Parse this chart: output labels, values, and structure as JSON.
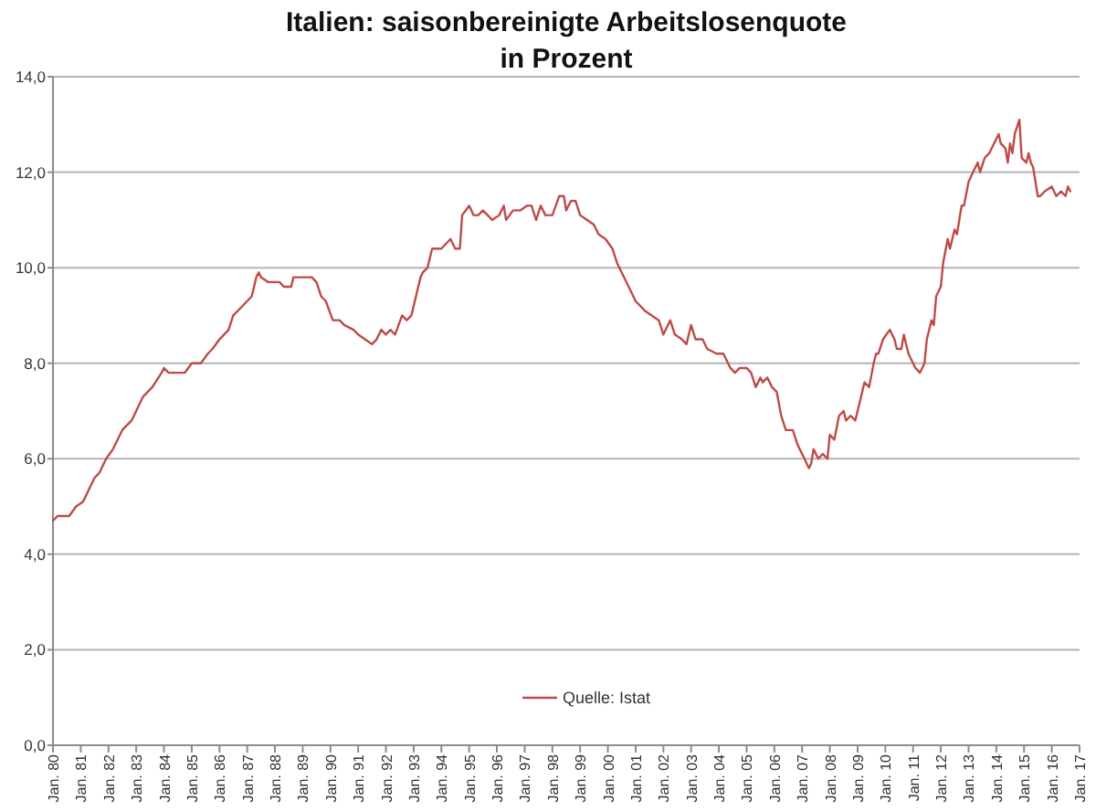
{
  "chart_data": {
    "type": "line",
    "title": "Italien: saisonbereinigte Arbeitslosenquote",
    "subtitle": "in Prozent",
    "x": [
      "1980-01",
      "1980-03",
      "1980-08",
      "1980-11",
      "1981-02",
      "1981-04",
      "1981-07",
      "1981-09",
      "1981-12",
      "1982-03",
      "1982-07",
      "1982-11",
      "1983-01",
      "1983-04",
      "1983-08",
      "1983-12",
      "1984-01",
      "1984-03",
      "1984-10",
      "1985-01",
      "1985-05",
      "1985-08",
      "1985-10",
      "1986-01",
      "1986-05",
      "1986-07",
      "1986-11",
      "1987-03",
      "1987-05",
      "1987-06",
      "1987-07",
      "1987-10",
      "1988-03",
      "1988-05",
      "1988-08",
      "1988-09",
      "1989-05",
      "1989-07",
      "1989-09",
      "1989-11",
      "1990-02",
      "1990-05",
      "1990-07",
      "1990-11",
      "1991-01",
      "1991-04",
      "1991-07",
      "1991-09",
      "1991-11",
      "1992-01",
      "1992-03",
      "1992-05",
      "1992-08",
      "1992-10",
      "1992-12",
      "1993-04",
      "1993-05",
      "1993-07",
      "1993-09",
      "1993-11",
      "1994-01",
      "1994-03",
      "1994-05",
      "1994-07",
      "1994-09",
      "1994-10",
      "1995-01",
      "1995-03",
      "1995-05",
      "1995-07",
      "1995-09",
      "1995-11",
      "1996-02",
      "1996-04",
      "1996-05",
      "1996-08",
      "1996-11",
      "1997-02",
      "1997-04",
      "1997-06",
      "1997-08",
      "1997-10",
      "1998-01",
      "1998-04",
      "1998-06",
      "1998-07",
      "1998-09",
      "1998-11",
      "1999-01",
      "1999-04",
      "1999-07",
      "1999-09",
      "1999-12",
      "2000-03",
      "2000-05",
      "2000-07",
      "2000-09",
      "2000-11",
      "2001-01",
      "2001-05",
      "2001-08",
      "2001-11",
      "2002-01",
      "2002-04",
      "2002-06",
      "2002-09",
      "2002-11",
      "2003-01",
      "2003-03",
      "2003-06",
      "2003-08",
      "2003-12",
      "2004-03",
      "2004-06",
      "2004-08",
      "2004-10",
      "2005-01",
      "2005-03",
      "2005-05",
      "2005-07",
      "2005-08",
      "2005-10",
      "2005-12",
      "2006-02",
      "2006-04",
      "2006-06",
      "2006-09",
      "2006-11",
      "2007-02",
      "2007-04",
      "2007-05",
      "2007-06",
      "2007-08",
      "2007-10",
      "2007-12",
      "2008-01",
      "2008-03",
      "2008-05",
      "2008-07",
      "2008-08",
      "2008-10",
      "2008-12",
      "2009-02",
      "2009-04",
      "2009-06",
      "2009-08",
      "2009-09",
      "2009-10",
      "2009-12",
      "2010-03",
      "2010-05",
      "2010-06",
      "2010-08",
      "2010-09",
      "2010-11",
      "2011-02",
      "2011-04",
      "2011-06",
      "2011-07",
      "2011-09",
      "2011-10",
      "2011-11",
      "2012-01",
      "2012-02",
      "2012-04",
      "2012-05",
      "2012-07",
      "2012-08",
      "2012-10",
      "2012-11",
      "2013-01",
      "2013-03",
      "2013-05",
      "2013-06",
      "2013-08",
      "2013-10",
      "2013-12",
      "2014-02",
      "2014-03",
      "2014-05",
      "2014-06",
      "2014-07",
      "2014-08",
      "2014-09",
      "2014-11",
      "2014-12",
      "2015-02",
      "2015-03",
      "2015-04",
      "2015-05",
      "2015-07",
      "2015-08",
      "2015-10",
      "2016-01",
      "2016-03",
      "2016-05",
      "2016-07",
      "2016-08",
      "2016-09"
    ],
    "series": [
      {
        "name": "Quelle: Istat",
        "color": "#be4b48",
        "values": [
          4.7,
          4.8,
          4.8,
          5.0,
          5.1,
          5.3,
          5.6,
          5.7,
          6.0,
          6.2,
          6.6,
          6.8,
          7.0,
          7.3,
          7.5,
          7.8,
          7.9,
          7.8,
          7.8,
          8.0,
          8.0,
          8.2,
          8.3,
          8.5,
          8.7,
          9.0,
          9.2,
          9.4,
          9.8,
          9.9,
          9.8,
          9.7,
          9.7,
          9.6,
          9.6,
          9.8,
          9.8,
          9.7,
          9.4,
          9.3,
          8.9,
          8.9,
          8.8,
          8.7,
          8.6,
          8.5,
          8.4,
          8.5,
          8.7,
          8.6,
          8.7,
          8.6,
          9.0,
          8.9,
          9.0,
          9.8,
          9.9,
          10.0,
          10.4,
          10.4,
          10.4,
          10.5,
          10.6,
          10.4,
          10.4,
          11.1,
          11.3,
          11.1,
          11.1,
          11.2,
          11.1,
          11.0,
          11.1,
          11.3,
          11.0,
          11.2,
          11.2,
          11.3,
          11.3,
          11.0,
          11.3,
          11.1,
          11.1,
          11.5,
          11.5,
          11.2,
          11.4,
          11.4,
          11.1,
          11.0,
          10.9,
          10.7,
          10.6,
          10.4,
          10.1,
          9.9,
          9.7,
          9.5,
          9.3,
          9.1,
          9.0,
          8.9,
          8.6,
          8.9,
          8.6,
          8.5,
          8.4,
          8.8,
          8.5,
          8.5,
          8.3,
          8.2,
          8.2,
          7.9,
          7.8,
          7.9,
          7.9,
          7.8,
          7.5,
          7.7,
          7.6,
          7.7,
          7.5,
          7.4,
          6.9,
          6.6,
          6.6,
          6.3,
          6.0,
          5.8,
          5.9,
          6.2,
          6.0,
          6.1,
          6.0,
          6.5,
          6.4,
          6.9,
          7.0,
          6.8,
          6.9,
          6.8,
          7.2,
          7.6,
          7.5,
          8.0,
          8.2,
          8.2,
          8.5,
          8.7,
          8.5,
          8.3,
          8.3,
          8.6,
          8.2,
          7.9,
          7.8,
          8.0,
          8.5,
          8.9,
          8.8,
          9.4,
          9.6,
          10.1,
          10.6,
          10.4,
          10.8,
          10.7,
          11.3,
          11.3,
          11.8,
          12.0,
          12.2,
          12.0,
          12.3,
          12.4,
          12.6,
          12.8,
          12.6,
          12.5,
          12.2,
          12.6,
          12.4,
          12.8,
          13.1,
          12.3,
          12.2,
          12.4,
          12.2,
          12.1,
          11.5,
          11.5,
          11.6,
          11.7,
          11.5,
          11.6,
          11.5,
          11.7,
          11.6
        ]
      }
    ],
    "xlim": [
      "1980-01",
      "2017-01"
    ],
    "xticks": [
      {
        "value": "1980-01",
        "label": "Jan. 80"
      },
      {
        "value": "1981-01",
        "label": "Jan. 81"
      },
      {
        "value": "1982-01",
        "label": "Jan. 82"
      },
      {
        "value": "1983-01",
        "label": "Jan. 83"
      },
      {
        "value": "1984-01",
        "label": "Jan. 84"
      },
      {
        "value": "1985-01",
        "label": "Jan. 85"
      },
      {
        "value": "1986-01",
        "label": "Jan. 86"
      },
      {
        "value": "1987-01",
        "label": "Jan. 87"
      },
      {
        "value": "1988-01",
        "label": "Jan. 88"
      },
      {
        "value": "1989-01",
        "label": "Jan. 89"
      },
      {
        "value": "1990-01",
        "label": "Jan. 90"
      },
      {
        "value": "1991-01",
        "label": "Jan. 91"
      },
      {
        "value": "1992-01",
        "label": "Jan. 92"
      },
      {
        "value": "1993-01",
        "label": "Jan. 93"
      },
      {
        "value": "1994-01",
        "label": "Jan. 94"
      },
      {
        "value": "1995-01",
        "label": "Jan. 95"
      },
      {
        "value": "1996-01",
        "label": "Jan. 96"
      },
      {
        "value": "1997-01",
        "label": "Jan. 97"
      },
      {
        "value": "1998-01",
        "label": "Jan. 98"
      },
      {
        "value": "1999-01",
        "label": "Jan. 99"
      },
      {
        "value": "2000-01",
        "label": "Jan. 00"
      },
      {
        "value": "2001-01",
        "label": "Jan. 01"
      },
      {
        "value": "2002-01",
        "label": "Jan. 02"
      },
      {
        "value": "2003-01",
        "label": "Jan. 03"
      },
      {
        "value": "2004-01",
        "label": "Jan. 04"
      },
      {
        "value": "2005-01",
        "label": "Jan. 05"
      },
      {
        "value": "2006-01",
        "label": "Jan. 06"
      },
      {
        "value": "2007-01",
        "label": "Jan. 07"
      },
      {
        "value": "2008-01",
        "label": "Jan. 08"
      },
      {
        "value": "2009-01",
        "label": "Jan. 09"
      },
      {
        "value": "2010-01",
        "label": "Jan. 10"
      },
      {
        "value": "2011-01",
        "label": "Jan. 11"
      },
      {
        "value": "2012-01",
        "label": "Jan. 12"
      },
      {
        "value": "2013-01",
        "label": "Jan. 13"
      },
      {
        "value": "2014-01",
        "label": "Jan. 14"
      },
      {
        "value": "2015-01",
        "label": "Jan. 15"
      },
      {
        "value": "2016-01",
        "label": "Jan. 16"
      },
      {
        "value": "2017-01",
        "label": "Jan. 17"
      }
    ],
    "ylim": [
      0,
      14
    ],
    "yticks": [
      {
        "value": 0,
        "label": "0,0"
      },
      {
        "value": 2,
        "label": "2,0"
      },
      {
        "value": 4,
        "label": "4,0"
      },
      {
        "value": 6,
        "label": "6,0"
      },
      {
        "value": 8,
        "label": "8,0"
      },
      {
        "value": 10,
        "label": "10,0"
      },
      {
        "value": 12,
        "label": "12,0"
      },
      {
        "value": 14,
        "label": "14,0"
      }
    ],
    "grid": "y",
    "legend": "bottom"
  }
}
